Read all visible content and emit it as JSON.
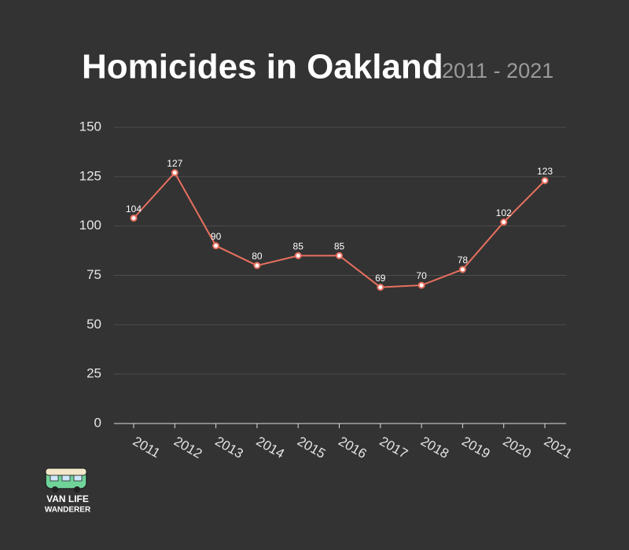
{
  "chart_data": {
    "type": "line",
    "title": "Homicides in Oakland",
    "subtitle": "2011 - 2021",
    "categories": [
      "2011",
      "2012",
      "2013",
      "2014",
      "2015",
      "2016",
      "2017",
      "2018",
      "2019",
      "2020",
      "2021"
    ],
    "series": [
      {
        "name": "Homicides",
        "color": "#e8705f",
        "values": [
          104,
          127,
          90,
          80,
          85,
          85,
          69,
          70,
          78,
          102,
          123
        ]
      }
    ],
    "ylim": [
      0,
      150
    ],
    "yticks": [
      0,
      25,
      50,
      75,
      100,
      125,
      150
    ],
    "grid": true
  },
  "logo": {
    "line1": "VAN LIFE",
    "line2": "WANDERER"
  }
}
